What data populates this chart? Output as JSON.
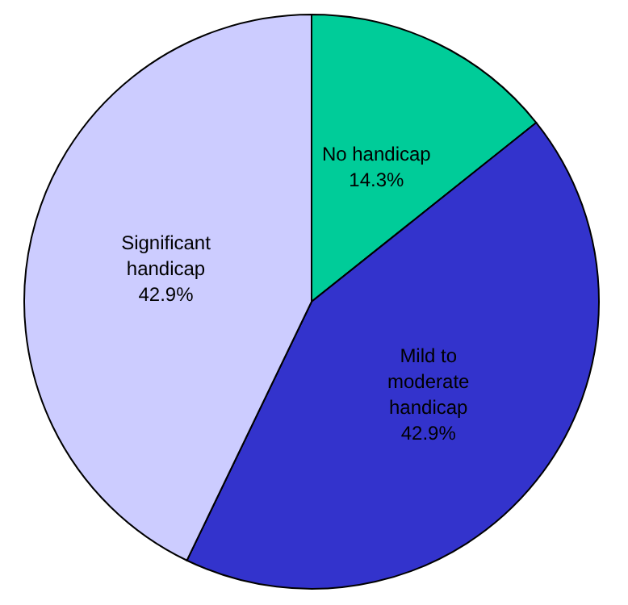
{
  "chart_data": {
    "type": "pie",
    "categories": [
      "No handicap",
      "Mild to moderate handicap",
      "Significant handicap"
    ],
    "values": [
      14.3,
      42.9,
      42.9
    ],
    "colors": [
      "#00cc99",
      "#3333cc",
      "#ccccff"
    ],
    "value_labels": [
      "14.3%",
      "42.9%",
      "42.9%"
    ]
  }
}
